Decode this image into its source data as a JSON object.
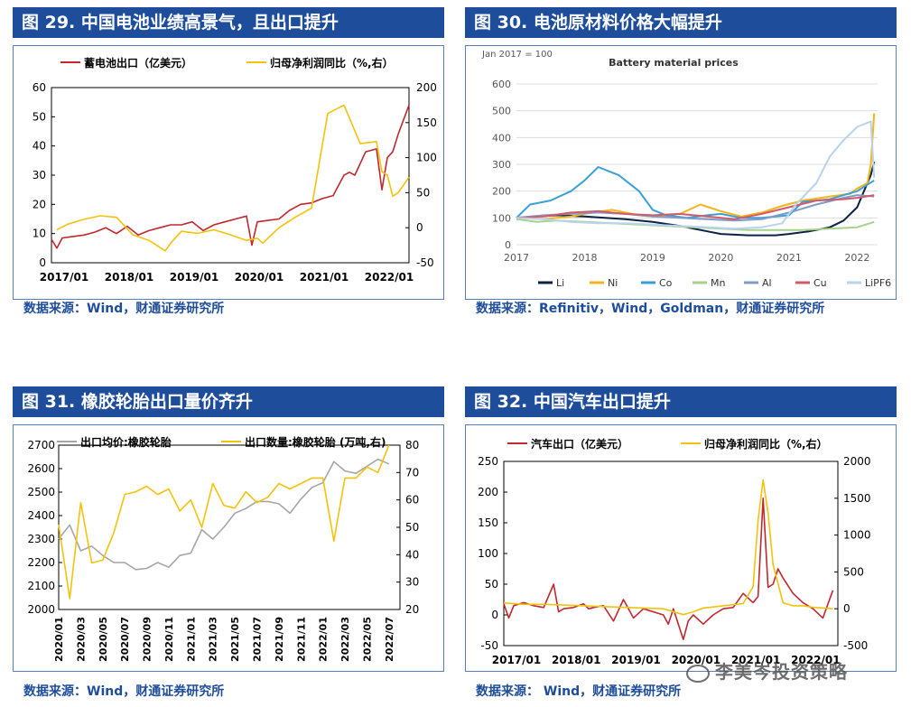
{
  "panels": [
    {
      "title": "图 29. 中国电池业绩高景气，且出口提升",
      "source": "数据来源：Wind，财通证券研究所"
    },
    {
      "title": "图 30. 电池原材料价格大幅提升",
      "source": "数据来源：Refinitiv，Wind，Goldman，财通证券研究所"
    },
    {
      "title": "图 31. 橡胶轮胎出口量价齐升",
      "source": "数据来源：Wind，财通证券研究所"
    },
    {
      "title": "图 32. 中国汽车出口提升",
      "source": "数据来源： Wind，财通证券研究所"
    }
  ],
  "watermark": "李美岑投资策略",
  "chart_data": [
    {
      "type": "line",
      "title": "",
      "legend": [
        "蓄电池出口（亿美元）",
        "归母净利润同比（%,右）"
      ],
      "ylim": [
        0,
        60
      ],
      "yticks": [
        0,
        10,
        20,
        30,
        40,
        50,
        60
      ],
      "y2lim": [
        -50,
        200
      ],
      "y2ticks": [
        -50,
        0,
        50,
        100,
        150,
        200
      ],
      "xticks": [
        "2017/01",
        "2018/01",
        "2019/01",
        "2020/01",
        "2021/01",
        "2022/01"
      ],
      "xrange": [
        0,
        66
      ],
      "series": [
        {
          "name": "蓄电池出口（亿美元）",
          "axis": "left",
          "color": "#c0282e",
          "x": [
            0,
            1,
            2,
            4,
            6,
            8,
            10,
            12,
            14,
            16,
            18,
            20,
            22,
            24,
            26,
            28,
            30,
            32,
            34,
            36,
            37,
            38,
            40,
            42,
            44,
            46,
            48,
            50,
            52,
            54,
            55,
            56,
            58,
            60,
            61,
            62,
            63,
            64,
            66
          ],
          "y": [
            8,
            5,
            8.5,
            9,
            9.5,
            10.5,
            12,
            10,
            12.5,
            9.5,
            11,
            12,
            13,
            13,
            14,
            11,
            13,
            14,
            15,
            16,
            6,
            14,
            14.5,
            15,
            18,
            20,
            20.5,
            22,
            23,
            30,
            31,
            30,
            38,
            39,
            25,
            36,
            38,
            44,
            54
          ]
        },
        {
          "name": "归母净利润同比（%,右）",
          "axis": "right",
          "color": "#f4c20d",
          "x": [
            1,
            3,
            6,
            9,
            12,
            15,
            18,
            21,
            22,
            24,
            27,
            30,
            33,
            36,
            38,
            39,
            42,
            45,
            48,
            51,
            54,
            57,
            60,
            61,
            62,
            63,
            64,
            66
          ],
          "y": [
            -3,
            5,
            12,
            17,
            15,
            -10,
            -18,
            -33,
            -22,
            -5,
            -8,
            -3,
            -10,
            -18,
            -15,
            -22,
            0,
            15,
            28,
            163,
            175,
            120,
            123,
            80,
            75,
            45,
            50,
            72
          ]
        }
      ]
    },
    {
      "type": "line",
      "title": "Battery material prices",
      "subtitle": "Jan 2017 = 100",
      "ylim": [
        0,
        600
      ],
      "yticks": [
        0,
        100,
        200,
        300,
        400,
        500,
        600
      ],
      "xticks": [
        "2017",
        "2018",
        "2019",
        "2020",
        "2021",
        "2022"
      ],
      "xrange": [
        2017,
        2022.3
      ],
      "series": [
        {
          "name": "Li",
          "color": "#0b2145",
          "x": [
            2017,
            2017.3,
            2017.6,
            2018,
            2018.3,
            2018.6,
            2019,
            2019.4,
            2019.8,
            2020,
            2020.4,
            2020.8,
            2021,
            2021.3,
            2021.6,
            2021.8,
            2022,
            2022.1,
            2022.2,
            2022.25
          ],
          "y": [
            100,
            105,
            110,
            105,
            100,
            95,
            85,
            70,
            50,
            40,
            35,
            35,
            40,
            50,
            65,
            90,
            140,
            200,
            260,
            310
          ]
        },
        {
          "name": "Ni",
          "color": "#f4b41a",
          "x": [
            2017,
            2017.4,
            2017.8,
            2018,
            2018.4,
            2018.8,
            2019,
            2019.4,
            2019.7,
            2020,
            2020.3,
            2020.6,
            2020.9,
            2021.2,
            2021.6,
            2021.9,
            2022,
            2022.15,
            2022.2,
            2022.25
          ],
          "y": [
            100,
            95,
            105,
            115,
            130,
            110,
            105,
            115,
            150,
            125,
            105,
            120,
            145,
            165,
            180,
            190,
            210,
            230,
            300,
            490
          ]
        },
        {
          "name": "Co",
          "color": "#3a9fd8",
          "x": [
            2017,
            2017.2,
            2017.5,
            2017.8,
            2018,
            2018.2,
            2018.5,
            2018.8,
            2019,
            2019.2,
            2019.5,
            2019.8,
            2020,
            2020.3,
            2020.6,
            2021,
            2021.2,
            2021.6,
            2022,
            2022.25
          ],
          "y": [
            100,
            150,
            165,
            200,
            240,
            290,
            260,
            200,
            130,
            110,
            100,
            110,
            115,
            100,
            100,
            110,
            160,
            170,
            200,
            240
          ]
        },
        {
          "name": "Mn",
          "color": "#a9d18e",
          "x": [
            2017,
            2017.3,
            2017.6,
            2018,
            2018.4,
            2018.8,
            2019.2,
            2019.6,
            2020,
            2020.4,
            2020.8,
            2021.2,
            2021.6,
            2022,
            2022.25
          ],
          "y": [
            95,
            85,
            90,
            85,
            80,
            75,
            70,
            65,
            60,
            55,
            55,
            55,
            60,
            65,
            85
          ]
        },
        {
          "name": "Al",
          "color": "#7f9cc7",
          "x": [
            2017,
            2017.4,
            2017.8,
            2018.2,
            2018.6,
            2019,
            2019.4,
            2019.8,
            2020.2,
            2020.6,
            2021,
            2021.4,
            2021.8,
            2022,
            2022.25
          ],
          "y": [
            100,
            110,
            115,
            120,
            115,
            105,
            100,
            95,
            90,
            95,
            120,
            150,
            175,
            185,
            180
          ]
        },
        {
          "name": "Cu",
          "color": "#d45a6a",
          "x": [
            2017,
            2017.4,
            2017.8,
            2018.2,
            2018.6,
            2019,
            2019.4,
            2019.8,
            2020.2,
            2020.6,
            2021,
            2021.4,
            2021.8,
            2022,
            2022.25
          ],
          "y": [
            100,
            105,
            120,
            125,
            115,
            110,
            115,
            105,
            95,
            115,
            140,
            165,
            170,
            175,
            185
          ]
        },
        {
          "name": "LiPF6",
          "color": "#b7d3ef",
          "x": [
            2017,
            2017.4,
            2017.8,
            2018.2,
            2018.6,
            2019,
            2019.4,
            2019.8,
            2020.2,
            2020.6,
            2020.9,
            2021.1,
            2021.4,
            2021.6,
            2021.8,
            2022,
            2022.2,
            2022.25
          ],
          "y": [
            100,
            95,
            85,
            80,
            80,
            75,
            70,
            65,
            60,
            65,
            80,
            150,
            230,
            330,
            390,
            440,
            460,
            250
          ]
        }
      ]
    },
    {
      "type": "line",
      "title": "",
      "legend": [
        "出口均价:橡胶轮胎",
        "出口数量:橡胶轮胎 (万吨,右)"
      ],
      "ylim": [
        2000,
        2700
      ],
      "yticks": [
        2000,
        2100,
        2200,
        2300,
        2400,
        2500,
        2600,
        2700
      ],
      "y2lim": [
        20,
        80
      ],
      "y2ticks": [
        20,
        30,
        40,
        50,
        60,
        70,
        80
      ],
      "xticks": [
        "2020/01",
        "2020/03",
        "2020/05",
        "2020/07",
        "2020/09",
        "2020/11",
        "2021/01",
        "2021/03",
        "2021/05",
        "2021/07",
        "2021/09",
        "2021/11",
        "2022/01",
        "2022/03",
        "2022/05",
        "2022/07"
      ],
      "xrange": [
        0,
        31
      ],
      "series": [
        {
          "name": "出口均价:橡胶轮胎",
          "axis": "left",
          "color": "#a6a6a6",
          "x": [
            0,
            1,
            2,
            3,
            4,
            5,
            6,
            7,
            8,
            9,
            10,
            11,
            12,
            13,
            14,
            15,
            16,
            17,
            18,
            19,
            20,
            21,
            22,
            23,
            24,
            25,
            26,
            27,
            28,
            29,
            30
          ],
          "y": [
            2300,
            2360,
            2250,
            2270,
            2230,
            2200,
            2200,
            2170,
            2175,
            2200,
            2180,
            2230,
            2240,
            2340,
            2300,
            2350,
            2410,
            2430,
            2460,
            2460,
            2450,
            2410,
            2470,
            2520,
            2540,
            2630,
            2590,
            2580,
            2610,
            2640,
            2620
          ]
        },
        {
          "name": "出口数量:橡胶轮胎 (万吨,右)",
          "axis": "right",
          "color": "#f4c20d",
          "x": [
            0,
            1,
            2,
            3,
            4,
            5,
            6,
            7,
            8,
            9,
            10,
            11,
            12,
            13,
            14,
            15,
            16,
            17,
            18,
            19,
            20,
            21,
            22,
            23,
            24,
            25,
            26,
            27,
            28,
            29,
            30
          ],
          "y": [
            51,
            24,
            59,
            37,
            38,
            48,
            62,
            63,
            65,
            62,
            64,
            56,
            60,
            50,
            66,
            58,
            57,
            63,
            59,
            61,
            66,
            64,
            66,
            68,
            68,
            45,
            68,
            68,
            72,
            70,
            80
          ]
        }
      ]
    },
    {
      "type": "line",
      "title": "",
      "legend": [
        "汽车出口（亿美元）",
        "归母净利润同比（%,右）"
      ],
      "ylim": [
        -50,
        250
      ],
      "yticks": [
        -50,
        0,
        50,
        100,
        150,
        200,
        250
      ],
      "y2lim": [
        -500,
        2000
      ],
      "y2ticks": [
        -500,
        0,
        500,
        1000,
        1500,
        2000
      ],
      "xticks": [
        "2017/01",
        "2018/01",
        "2019/01",
        "2020/01",
        "2021/01",
        "2022/01"
      ],
      "xrange": [
        0,
        67
      ],
      "series": [
        {
          "name": "汽车出口（亿美元）",
          "axis": "left",
          "color": "#c0282e",
          "x": [
            0,
            1,
            2,
            4,
            6,
            8,
            10,
            11,
            12,
            14,
            16,
            17,
            18,
            20,
            22,
            24,
            26,
            28,
            30,
            32,
            33,
            34,
            36,
            37,
            38,
            40,
            42,
            44,
            46,
            48,
            50,
            51,
            52,
            53,
            54,
            55,
            56,
            58,
            60,
            62,
            64,
            66
          ],
          "y": [
            18,
            -5,
            15,
            20,
            15,
            12,
            50,
            5,
            10,
            12,
            18,
            10,
            12,
            15,
            -10,
            25,
            -5,
            10,
            5,
            0,
            -15,
            10,
            -40,
            -10,
            0,
            -15,
            0,
            10,
            12,
            35,
            20,
            30,
            190,
            45,
            50,
            75,
            60,
            35,
            20,
            10,
            -5,
            40
          ]
        },
        {
          "name": "归母净利润同比（%,右）",
          "axis": "right",
          "color": "#f4c20d",
          "x": [
            0,
            4,
            8,
            12,
            16,
            20,
            24,
            28,
            32,
            36,
            38,
            40,
            44,
            48,
            50,
            51,
            52,
            53,
            54,
            56,
            58,
            60,
            62,
            64,
            66
          ],
          "y": [
            80,
            60,
            60,
            50,
            40,
            30,
            20,
            10,
            0,
            -80,
            -40,
            10,
            40,
            70,
            300,
            1200,
            1750,
            1300,
            600,
            80,
            40,
            40,
            20,
            10,
            0
          ]
        }
      ]
    }
  ]
}
